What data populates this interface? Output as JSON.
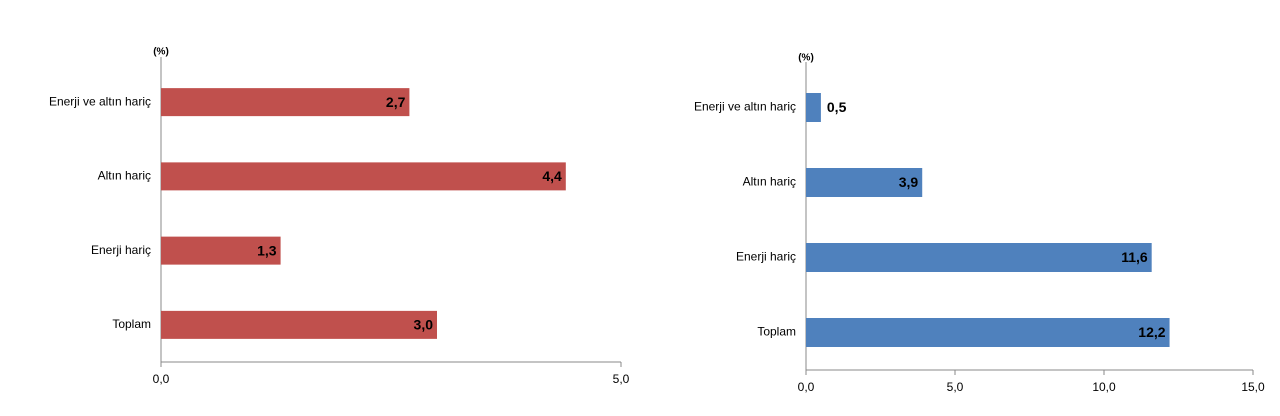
{
  "chart_data": [
    {
      "type": "bar",
      "orientation": "horizontal",
      "axis_label": "(%)",
      "categories": [
        "Enerji ve altın hariç",
        "Altın hariç",
        "Enerji hariç",
        "Toplam"
      ],
      "values": [
        2.7,
        4.4,
        1.3,
        3.0
      ],
      "value_labels": [
        "2,7",
        "4,4",
        "1,3",
        "3,0"
      ],
      "color": "#c0504d",
      "xlim": [
        0,
        5
      ],
      "xticks": [
        {
          "value": 0,
          "label": "0,0"
        },
        {
          "value": 5,
          "label": "5,0"
        }
      ]
    },
    {
      "type": "bar",
      "orientation": "horizontal",
      "axis_label": "(%)",
      "categories": [
        "Enerji ve altın hariç",
        "Altın hariç",
        "Enerji hariç",
        "Toplam"
      ],
      "values": [
        0.5,
        3.9,
        11.6,
        12.2
      ],
      "value_labels": [
        "0,5",
        "3,9",
        "11,6",
        "12,2"
      ],
      "color": "#4f81bd",
      "xlim": [
        0,
        15
      ],
      "xticks": [
        {
          "value": 0,
          "label": "0,0"
        },
        {
          "value": 5,
          "label": "5,0"
        },
        {
          "value": 10,
          "label": "10,0"
        },
        {
          "value": 15,
          "label": "15,0"
        }
      ]
    }
  ]
}
